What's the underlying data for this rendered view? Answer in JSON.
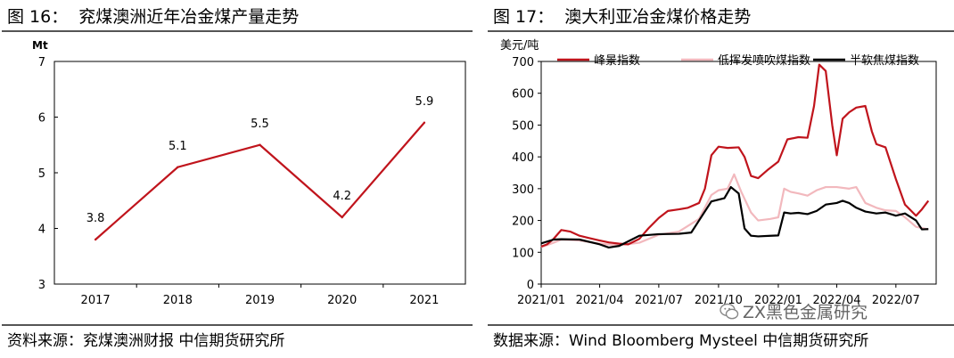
{
  "left": {
    "fig_title": "图 16：  兖煤澳洲近年冶金煤产量走势",
    "source": "资料来源：兖煤澳洲财报 中信期货研究所"
  },
  "right": {
    "fig_title": "图 17：  澳大利亚冶金煤价格走势",
    "source": "数据来源：Wind Bloomberg Mysteel 中信期货研究所",
    "watermark": "ZX黑色金属研究"
  },
  "colors": {
    "red": "#c0141c",
    "pink": "#f2b8bd",
    "black": "#000000"
  },
  "chart_data": [
    {
      "type": "line",
      "title": "",
      "ylabel": "Mt",
      "xlabel": "",
      "categories": [
        "2017",
        "2018",
        "2019",
        "2020",
        "2021"
      ],
      "values": [
        3.8,
        5.1,
        5.5,
        4.2,
        5.9
      ],
      "data_labels": [
        "3.8",
        "5.1",
        "5.5",
        "4.2",
        "5.9"
      ],
      "ylim": [
        3,
        7
      ],
      "yticks": [
        3,
        4,
        5,
        6,
        7
      ],
      "grid": false,
      "series_color": "#c0141c"
    },
    {
      "type": "line",
      "title": "",
      "ylabel": "美元/吨",
      "xlabel": "",
      "x_tick_labels": [
        "2021/01",
        "2021/04",
        "2021/07",
        "2021/10",
        "2022/01",
        "2022/04",
        "2022/07"
      ],
      "ylim": [
        0,
        700
      ],
      "yticks": [
        0,
        100,
        200,
        300,
        400,
        500,
        600,
        700
      ],
      "grid": false,
      "legend_position": "top",
      "series": [
        {
          "name": "峰景指数",
          "color": "#c0141c",
          "points": [
            [
              "2021/01/01",
              118
            ],
            [
              "2021/01/10",
              125
            ],
            [
              "2021/01/20",
              142
            ],
            [
              "2021/02/01",
              170
            ],
            [
              "2021/02/15",
              165
            ],
            [
              "2021/03/01",
              152
            ],
            [
              "2021/03/15",
              145
            ],
            [
              "2021/04/01",
              137
            ],
            [
              "2021/04/15",
              131
            ],
            [
              "2021/05/01",
              127
            ],
            [
              "2021/05/15",
              125
            ],
            [
              "2021/06/01",
              142
            ],
            [
              "2021/06/15",
              175
            ],
            [
              "2021/07/01",
              208
            ],
            [
              "2021/07/15",
              230
            ],
            [
              "2021/08/01",
              235
            ],
            [
              "2021/08/15",
              240
            ],
            [
              "2021/09/01",
              255
            ],
            [
              "2021/09/10",
              300
            ],
            [
              "2021/09/20",
              405
            ],
            [
              "2021/10/01",
              432
            ],
            [
              "2021/10/15",
              428
            ],
            [
              "2021/11/01",
              430
            ],
            [
              "2021/11/10",
              400
            ],
            [
              "2021/11/20",
              340
            ],
            [
              "2021/12/01",
              333
            ],
            [
              "2021/12/15",
              358
            ],
            [
              "2022/01/01",
              385
            ],
            [
              "2022/01/15",
              455
            ],
            [
              "2022/02/01",
              462
            ],
            [
              "2022/02/15",
              460
            ],
            [
              "2022/02/25",
              560
            ],
            [
              "2022/03/05",
              690
            ],
            [
              "2022/03/15",
              670
            ],
            [
              "2022/03/25",
              500
            ],
            [
              "2022/04/01",
              405
            ],
            [
              "2022/04/10",
              520
            ],
            [
              "2022/04/20",
              540
            ],
            [
              "2022/05/01",
              555
            ],
            [
              "2022/05/15",
              560
            ],
            [
              "2022/05/25",
              480
            ],
            [
              "2022/06/01",
              440
            ],
            [
              "2022/06/15",
              430
            ],
            [
              "2022/07/01",
              330
            ],
            [
              "2022/07/15",
              250
            ],
            [
              "2022/08/01",
              215
            ],
            [
              "2022/08/10",
              235
            ],
            [
              "2022/08/20",
              262
            ]
          ]
        },
        {
          "name": "低挥发喷吹煤指数",
          "color": "#f2b8bd",
          "points": [
            [
              "2021/01/01",
              116
            ],
            [
              "2021/01/20",
              130
            ],
            [
              "2021/02/01",
              140
            ],
            [
              "2021/03/01",
              137
            ],
            [
              "2021/04/01",
              127
            ],
            [
              "2021/05/01",
              122
            ],
            [
              "2021/06/01",
              130
            ],
            [
              "2021/07/01",
              155
            ],
            [
              "2021/08/01",
              165
            ],
            [
              "2021/09/01",
              205
            ],
            [
              "2021/09/20",
              280
            ],
            [
              "2021/10/01",
              295
            ],
            [
              "2021/10/15",
              300
            ],
            [
              "2021/10/25",
              345
            ],
            [
              "2021/11/05",
              290
            ],
            [
              "2021/11/20",
              225
            ],
            [
              "2021/12/01",
              200
            ],
            [
              "2021/12/20",
              205
            ],
            [
              "2022/01/01",
              210
            ],
            [
              "2022/01/10",
              300
            ],
            [
              "2022/01/20",
              290
            ],
            [
              "2022/02/01",
              285
            ],
            [
              "2022/02/15",
              278
            ],
            [
              "2022/03/01",
              295
            ],
            [
              "2022/03/15",
              305
            ],
            [
              "2022/04/01",
              305
            ],
            [
              "2022/04/20",
              300
            ],
            [
              "2022/05/01",
              305
            ],
            [
              "2022/05/15",
              255
            ],
            [
              "2022/06/01",
              240
            ],
            [
              "2022/06/15",
              232
            ],
            [
              "2022/07/01",
              230
            ],
            [
              "2022/07/15",
              210
            ],
            [
              "2022/08/01",
              180
            ],
            [
              "2022/08/20",
              172
            ]
          ]
        },
        {
          "name": "半软焦煤指数",
          "color": "#000000",
          "points": [
            [
              "2021/01/01",
              128
            ],
            [
              "2021/01/20",
              140
            ],
            [
              "2021/02/01",
              141
            ],
            [
              "2021/03/01",
              140
            ],
            [
              "2021/04/01",
              125
            ],
            [
              "2021/04/15",
              115
            ],
            [
              "2021/05/01",
              120
            ],
            [
              "2021/06/01",
              152
            ],
            [
              "2021/07/01",
              157
            ],
            [
              "2021/08/01",
              158
            ],
            [
              "2021/08/20",
              162
            ],
            [
              "2021/09/01",
              200
            ],
            [
              "2021/09/20",
              260
            ],
            [
              "2021/10/10",
              270
            ],
            [
              "2021/10/20",
              305
            ],
            [
              "2021/11/01",
              285
            ],
            [
              "2021/11/10",
              175
            ],
            [
              "2021/11/20",
              152
            ],
            [
              "2021/12/01",
              150
            ],
            [
              "2021/12/20",
              152
            ],
            [
              "2022/01/01",
              153
            ],
            [
              "2022/01/10",
              225
            ],
            [
              "2022/01/20",
              222
            ],
            [
              "2022/02/01",
              224
            ],
            [
              "2022/02/15",
              220
            ],
            [
              "2022/03/01",
              230
            ],
            [
              "2022/03/15",
              250
            ],
            [
              "2022/04/01",
              255
            ],
            [
              "2022/04/10",
              262
            ],
            [
              "2022/04/20",
              255
            ],
            [
              "2022/05/01",
              240
            ],
            [
              "2022/05/15",
              228
            ],
            [
              "2022/06/01",
              222
            ],
            [
              "2022/06/15",
              225
            ],
            [
              "2022/07/01",
              215
            ],
            [
              "2022/07/15",
              222
            ],
            [
              "2022/08/01",
              200
            ],
            [
              "2022/08/10",
              172
            ],
            [
              "2022/08/20",
              173
            ]
          ]
        }
      ]
    }
  ]
}
